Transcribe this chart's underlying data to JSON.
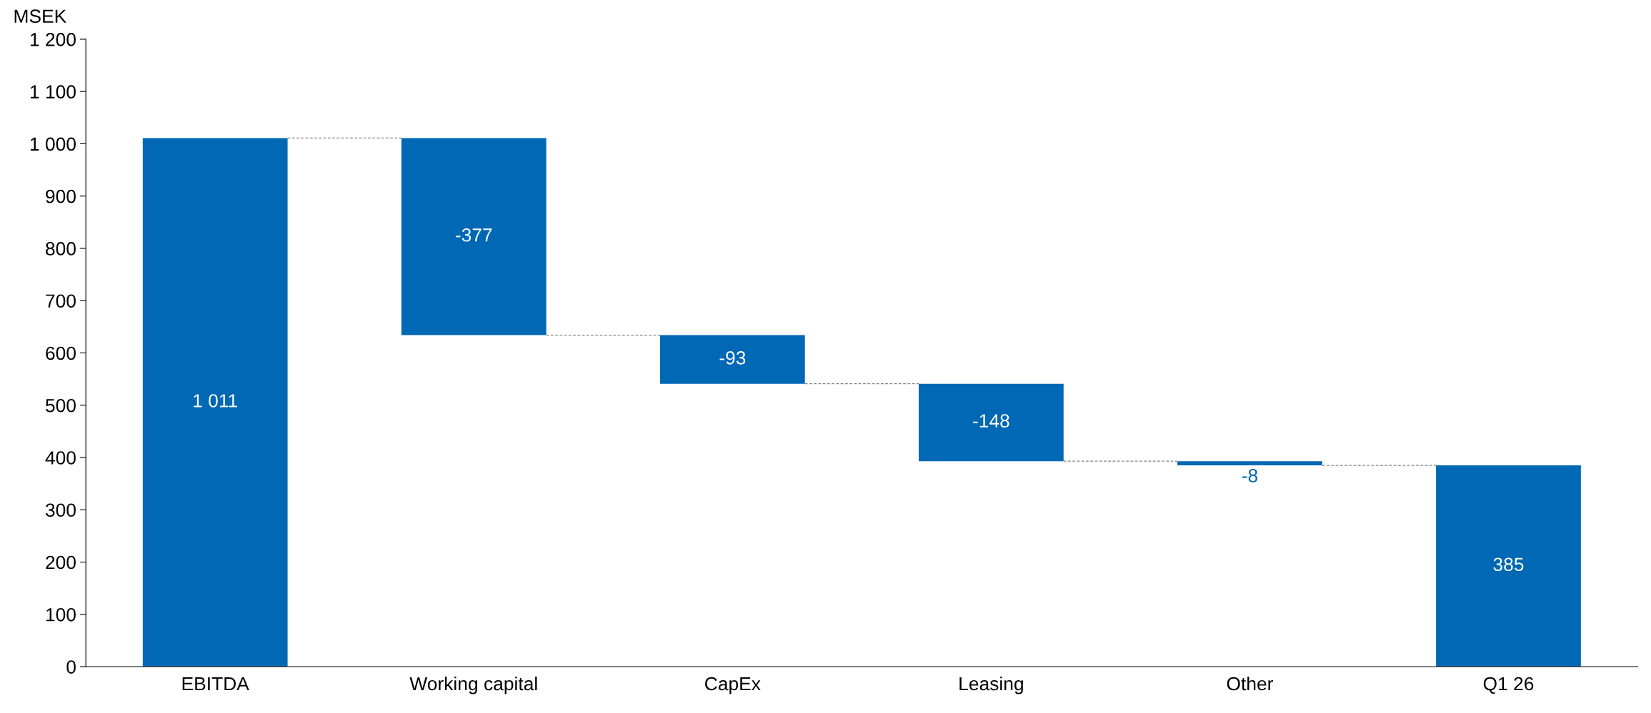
{
  "chart_data": {
    "type": "bar",
    "ylabel": "MSEK",
    "categories": [
      "EBITDA",
      "Working capital",
      "CapEx",
      "Leasing",
      "Other",
      "Q1 26"
    ],
    "values": [
      1011,
      -377,
      -93,
      -148,
      -8,
      385
    ],
    "base": [
      0,
      1011,
      634,
      541,
      393,
      0
    ],
    "color": "#0068b4",
    "value_labels": [
      "1 011",
      "-377",
      "-93",
      "-148",
      "-8",
      "385"
    ],
    "ylim": [
      0,
      1200
    ],
    "yticks": [
      0,
      100,
      200,
      300,
      400,
      500,
      600,
      700,
      800,
      900,
      {
        "value": 1000,
        "label": "1 000"
      },
      {
        "value": 1100,
        "label": "1 100"
      },
      {
        "value": 1200,
        "label": "1 200"
      }
    ],
    "grid": false
  }
}
